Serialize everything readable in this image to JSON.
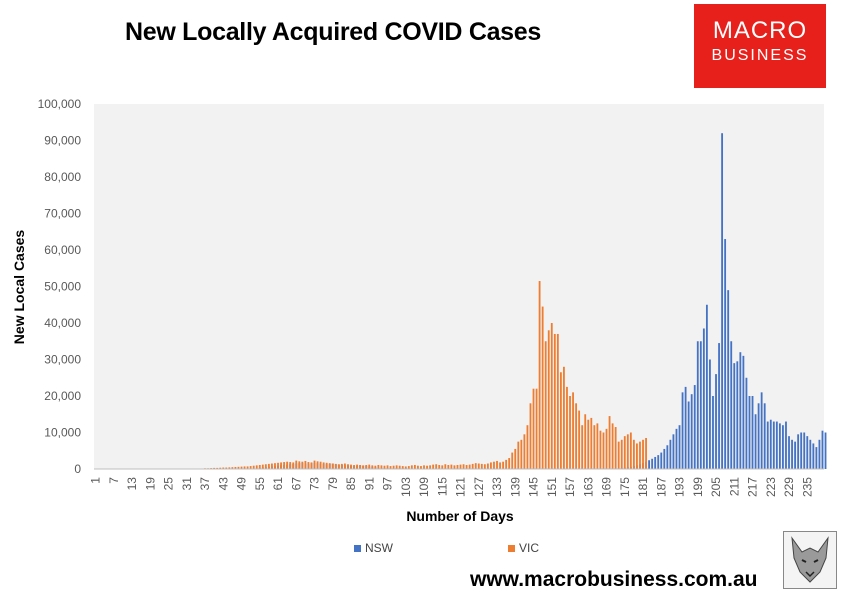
{
  "header": {
    "title": "New Locally Acquired COVID Cases"
  },
  "logo": {
    "line1": "MACRO",
    "line2": "BUSINESS",
    "color": "#e8201c"
  },
  "footer": {
    "url": "www.macrobusiness.com.au"
  },
  "colors": {
    "NSW": "#4472c4",
    "VIC": "#ed7d31",
    "plot_bg": "#f2f2f2",
    "logo_red": "#e8201c"
  },
  "icons": {
    "wolf": "wolf-logo-icon"
  },
  "chart_data": {
    "type": "bar",
    "xlabel": "Number of Days",
    "ylabel": "New Local Cases",
    "ylim": [
      0,
      100000
    ],
    "y_ticks": [
      0,
      10000,
      20000,
      30000,
      40000,
      50000,
      60000,
      70000,
      80000,
      90000,
      100000
    ],
    "y_tick_labels": [
      "0",
      "10,000",
      "20,000",
      "30,000",
      "40,000",
      "50,000",
      "60,000",
      "70,000",
      "80,000",
      "90,000",
      "100,000"
    ],
    "x_tick_labels": [
      "1",
      "7",
      "13",
      "19",
      "25",
      "31",
      "37",
      "43",
      "49",
      "55",
      "61",
      "67",
      "73",
      "79",
      "85",
      "91",
      "97",
      "103",
      "109",
      "115",
      "121",
      "127",
      "133",
      "139",
      "145",
      "151",
      "157",
      "163",
      "169",
      "175",
      "181",
      "187",
      "193",
      "199",
      "205",
      "211",
      "217",
      "223",
      "229",
      "235"
    ],
    "grid": false,
    "legend": "bottom",
    "series": [
      {
        "name": "NSW",
        "start_day": 55,
        "values": [
          300,
          400,
          500,
          600,
          700,
          800,
          900,
          1000,
          1100,
          1200,
          1300,
          1400,
          1500,
          1600,
          1700,
          1500,
          1400,
          1600,
          1700,
          1600,
          1500,
          1400,
          1300,
          1400,
          1500,
          1300,
          1200,
          1100,
          1000,
          1000,
          900,
          800,
          900,
          1000,
          900,
          800,
          700,
          600,
          500,
          400,
          300,
          300,
          300,
          300,
          300,
          300,
          300,
          300,
          300,
          200,
          200,
          200,
          200,
          200,
          200,
          200,
          200,
          200,
          200,
          200,
          200,
          200,
          200,
          200,
          200,
          200,
          200,
          200,
          200,
          200,
          200,
          200,
          200,
          200,
          200,
          200,
          200,
          200,
          200,
          200,
          200,
          200,
          200,
          200,
          200,
          200,
          200,
          200,
          200,
          200,
          200,
          200,
          200,
          200,
          200,
          200,
          200,
          200,
          200,
          200,
          200,
          200,
          200,
          200,
          200,
          200,
          200,
          200,
          200,
          200,
          200,
          200,
          200,
          200,
          200,
          200,
          200,
          200,
          200,
          300,
          400,
          500,
          600,
          800,
          1000,
          1300,
          1600,
          2000,
          2400,
          2800,
          3300,
          3800,
          4500,
          5500,
          6500,
          8000,
          9500,
          11000,
          12000,
          21000,
          22500,
          18500,
          20500,
          23000,
          35000,
          35000,
          38500,
          45000,
          30000,
          20000,
          26000,
          34500,
          92000,
          63000,
          49000,
          35000,
          29000,
          29500,
          32000,
          31000,
          25000,
          20000,
          20000,
          15000,
          18000,
          21000,
          18000,
          13000,
          13500,
          13000,
          13000,
          12500,
          12000,
          13000,
          9000,
          8000,
          7500,
          9500,
          10000,
          10000,
          9000,
          8000,
          7000,
          6000,
          8000,
          10500,
          10000
        ]
      },
      {
        "name": "VIC",
        "start_day": 37,
        "values": [
          200,
          200,
          250,
          300,
          300,
          350,
          400,
          400,
          450,
          500,
          550,
          600,
          650,
          700,
          700,
          800,
          900,
          1000,
          1100,
          1200,
          1300,
          1400,
          1500,
          1600,
          1700,
          1800,
          1900,
          2000,
          1900,
          1800,
          2300,
          2100,
          2000,
          2200,
          1900,
          1800,
          2300,
          2100,
          2000,
          1800,
          1700,
          1600,
          1500,
          1400,
          1300,
          1400,
          1500,
          1300,
          1200,
          1100,
          1200,
          1100,
          1000,
          1100,
          1200,
          1000,
          900,
          1100,
          1000,
          900,
          1000,
          800,
          900,
          1000,
          900,
          800,
          700,
          800,
          1000,
          1100,
          900,
          800,
          1000,
          900,
          1000,
          1200,
          1300,
          1100,
          1000,
          1300,
          1100,
          1200,
          1000,
          1100,
          1200,
          1300,
          1100,
          1200,
          1400,
          1600,
          1500,
          1400,
          1300,
          1500,
          1800,
          2000,
          2200,
          1800,
          2000,
          2500,
          3000,
          4500,
          5500,
          7500,
          8000,
          9500,
          12000,
          18000,
          22000,
          22000,
          51500,
          44500,
          35000,
          38000,
          40000,
          37000,
          37000,
          26500,
          28000,
          22500,
          20000,
          21000,
          18000,
          16000,
          12000,
          15000,
          13500,
          14000,
          12000,
          12500,
          10500,
          10000,
          11000,
          14500,
          12500,
          11500,
          7500,
          8000,
          9000,
          9500,
          10000,
          8000,
          7000,
          7500,
          8000,
          8500
        ]
      }
    ]
  }
}
